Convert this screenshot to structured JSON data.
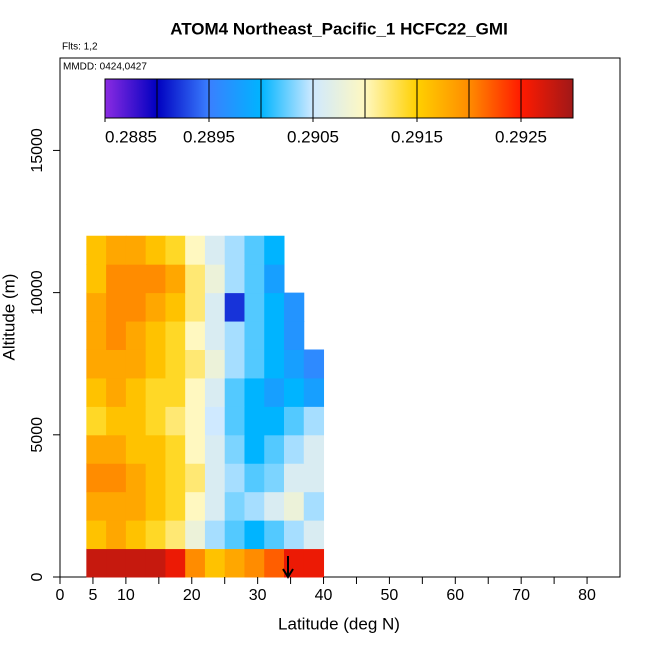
{
  "chart_data": {
    "type": "heatmap",
    "title": "ATOM4 Northeast_Pacific_1 HCFC22_GMI",
    "subtitle": "Flts: 1,2",
    "annotation": "MMDD: 0424,0427",
    "x_label": "Latitude (deg N)",
    "y_label": "Altitude (m)",
    "xlim": [
      0,
      85
    ],
    "ylim": [
      0,
      18250
    ],
    "xticks": [
      0,
      5,
      10,
      20,
      30,
      40,
      50,
      60,
      70,
      80
    ],
    "xminorticks": [
      15,
      25,
      35,
      45,
      55,
      65,
      75
    ],
    "yticks": [
      0,
      5000,
      10000,
      15000
    ],
    "x_edges": [
      4,
      7,
      10,
      13,
      16,
      19,
      22,
      25,
      28,
      31,
      34,
      37,
      40
    ],
    "y_edges": [
      0,
      1000,
      2000,
      3000,
      4000,
      5000,
      6000,
      7000,
      8000,
      9000,
      10000,
      11000,
      12000
    ],
    "values": [
      [
        0.2928,
        0.2928,
        0.2928,
        0.2928,
        0.2926,
        0.292,
        0.2916,
        0.2918,
        0.292,
        0.2922,
        0.2926,
        0.2926
      ],
      [
        0.2916,
        0.2918,
        0.2916,
        0.2914,
        0.2912,
        0.2908,
        0.2904,
        0.2902,
        0.29,
        0.2902,
        0.2904,
        0.2906
      ],
      [
        0.2918,
        0.2918,
        0.2918,
        0.2916,
        0.2914,
        0.291,
        0.2906,
        0.2903,
        0.2904,
        0.2906,
        0.2908,
        0.2904
      ],
      [
        0.292,
        0.292,
        0.2918,
        0.2916,
        0.2914,
        0.2912,
        0.2906,
        0.2904,
        0.2902,
        0.2903,
        0.2906,
        0.2906
      ],
      [
        0.2918,
        0.2918,
        0.2916,
        0.2916,
        0.2914,
        0.291,
        0.2906,
        0.2903,
        0.29,
        0.2902,
        0.2904,
        0.2906
      ],
      [
        0.2914,
        0.2916,
        0.2916,
        0.2914,
        0.2912,
        0.291,
        0.2905,
        0.2902,
        0.29,
        0.29,
        0.2902,
        0.2904
      ],
      [
        0.2916,
        0.2918,
        0.2916,
        0.2914,
        0.2914,
        0.291,
        0.2906,
        0.2902,
        0.29,
        0.2898,
        0.29,
        0.2898
      ],
      [
        0.2918,
        0.2918,
        0.2918,
        0.2916,
        0.2914,
        0.2912,
        0.2908,
        0.2904,
        0.2902,
        0.29,
        0.2898,
        0.2896
      ],
      [
        0.2918,
        0.292,
        0.2918,
        0.2916,
        0.2914,
        0.291,
        0.2906,
        0.2904,
        0.2902,
        0.29,
        0.2897,
        null
      ],
      [
        0.2918,
        0.292,
        0.292,
        0.2918,
        0.2916,
        0.2912,
        0.2906,
        0.2892,
        0.2902,
        0.29,
        0.2897,
        null
      ],
      [
        0.2916,
        0.292,
        0.292,
        0.292,
        0.2918,
        0.2912,
        0.2908,
        0.2904,
        0.2902,
        0.2898,
        null,
        null
      ],
      [
        0.2916,
        0.2918,
        0.2918,
        0.2916,
        0.2914,
        0.291,
        0.2906,
        0.2904,
        0.2902,
        0.29,
        null,
        null
      ]
    ],
    "clim": [
      0.2885,
      0.293
    ],
    "cticks": [
      0.2885,
      0.2895,
      0.2905,
      0.2915,
      0.2925
    ],
    "cbins": [
      0.289,
      0.2895,
      0.29,
      0.2905,
      0.291,
      0.2915,
      0.292,
      0.2925
    ],
    "colors": [
      "#8b2be2",
      "#0000c0",
      "#3a7fff",
      "#00b4ff",
      "#cfe9ff",
      "#fff8c0",
      "#ffd000",
      "#ff8c00",
      "#ff1a00",
      "#a01818"
    ]
  }
}
